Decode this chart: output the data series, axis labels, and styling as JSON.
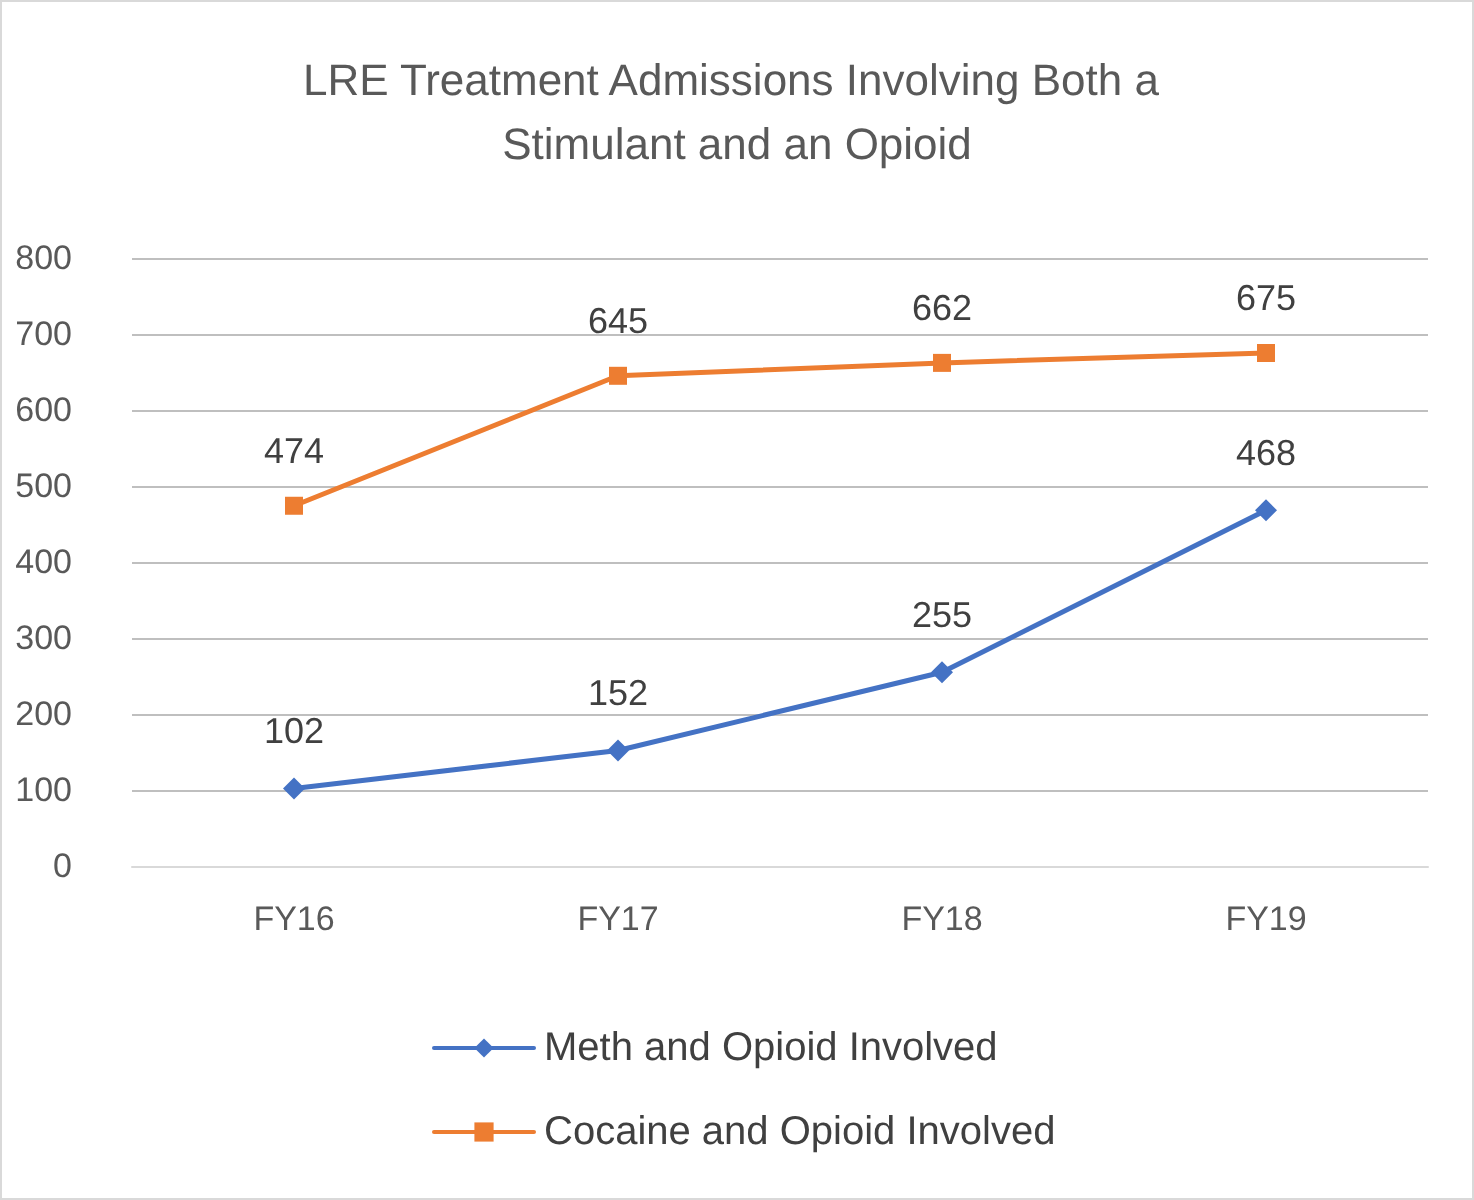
{
  "chart_data": {
    "type": "line",
    "title": "LRE Treatment Admissions Involving Both a Stimulant and an Opioid",
    "categories": [
      "FY16",
      "FY17",
      "FY18",
      "FY19"
    ],
    "series": [
      {
        "name": "Meth and Opioid Involved",
        "color": "#4472c4",
        "marker": "diamond",
        "values": [
          102,
          152,
          255,
          468
        ]
      },
      {
        "name": "Cocaine and Opioid Involved",
        "color": "#ed7d31",
        "marker": "square",
        "values": [
          474,
          645,
          662,
          675
        ]
      }
    ],
    "ylim": [
      0,
      800
    ],
    "yticks": [
      0,
      100,
      200,
      300,
      400,
      500,
      600,
      700,
      800
    ],
    "grid": "y",
    "legend": "bottom",
    "data_labels": true,
    "line_style": "solid"
  }
}
